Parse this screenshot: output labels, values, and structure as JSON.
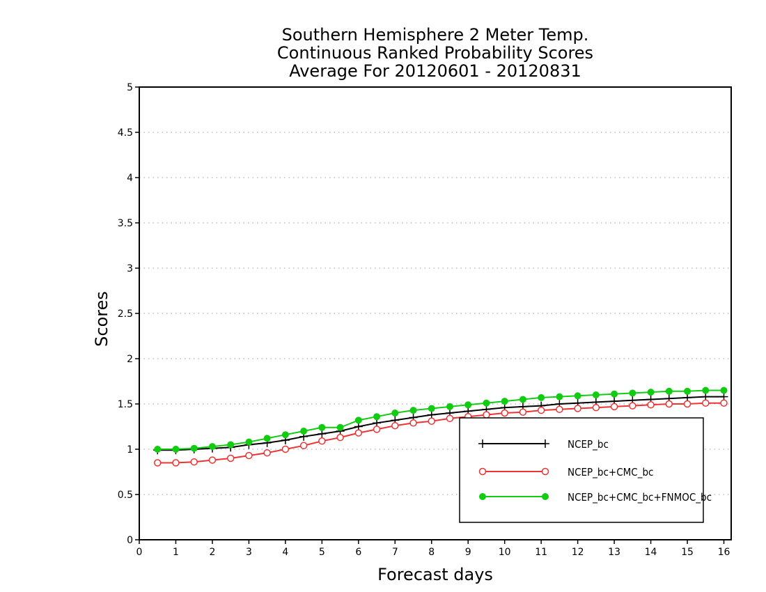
{
  "chart_data": {
    "type": "line",
    "title": [
      "Southern Hemisphere 2 Meter Temp.",
      "Continuous Ranked Probability Scores",
      "Average For 20120601 - 20120831"
    ],
    "xlabel": "Forecast days",
    "ylabel": "Scores",
    "xlim": [
      0,
      16.2
    ],
    "ylim": [
      0,
      5
    ],
    "xticks": [
      0,
      1,
      2,
      3,
      4,
      5,
      6,
      7,
      8,
      9,
      10,
      11,
      12,
      13,
      14,
      15,
      16
    ],
    "xtick_labels": [
      "0",
      "1",
      "2",
      "3",
      "4",
      "5",
      "6",
      "7",
      "8",
      "9",
      "10",
      "11",
      "12",
      "13",
      "14",
      "15",
      "16"
    ],
    "yticks": [
      0,
      0.5,
      1,
      1.5,
      2,
      2.5,
      3,
      3.5,
      4,
      4.5,
      5
    ],
    "ytick_labels": [
      "0",
      "0.5",
      "1",
      "1.5",
      "2",
      "2.5",
      "3",
      "3.5",
      "4",
      "4.5",
      "5"
    ],
    "grid": "horizontal dotted",
    "legend_position": "bottom-right",
    "x": [
      0.5,
      1,
      1.5,
      2,
      2.5,
      3,
      3.5,
      4,
      4.5,
      5,
      5.5,
      6,
      6.5,
      7,
      7.5,
      8,
      8.5,
      9,
      9.5,
      10,
      10.5,
      11,
      11.5,
      12,
      12.5,
      13,
      13.5,
      14,
      14.5,
      15,
      15.5,
      16
    ],
    "series": [
      {
        "name": "NCEP_bc",
        "color": "#000000",
        "marker": "plus",
        "values": [
          0.99,
          0.99,
          1.0,
          1.01,
          1.02,
          1.05,
          1.07,
          1.1,
          1.14,
          1.17,
          1.2,
          1.25,
          1.29,
          1.32,
          1.35,
          1.38,
          1.4,
          1.42,
          1.44,
          1.46,
          1.47,
          1.48,
          1.5,
          1.51,
          1.52,
          1.53,
          1.54,
          1.55,
          1.56,
          1.57,
          1.58,
          1.58
        ]
      },
      {
        "name": "NCEP_bc+CMC_bc",
        "color": "#ee3333",
        "marker": "open-circle",
        "values": [
          0.85,
          0.85,
          0.86,
          0.88,
          0.9,
          0.93,
          0.96,
          1.0,
          1.04,
          1.09,
          1.13,
          1.18,
          1.22,
          1.26,
          1.29,
          1.31,
          1.34,
          1.36,
          1.38,
          1.4,
          1.41,
          1.43,
          1.44,
          1.45,
          1.46,
          1.47,
          1.48,
          1.49,
          1.5,
          1.5,
          1.51,
          1.51
        ]
      },
      {
        "name": "NCEP_bc+CMC_bc+FNMOC_bc",
        "color": "#11cc11",
        "marker": "filled-circle",
        "values": [
          1.0,
          1.0,
          1.01,
          1.03,
          1.05,
          1.08,
          1.12,
          1.16,
          1.2,
          1.24,
          1.24,
          1.32,
          1.36,
          1.4,
          1.43,
          1.45,
          1.47,
          1.49,
          1.51,
          1.53,
          1.55,
          1.57,
          1.58,
          1.59,
          1.6,
          1.61,
          1.62,
          1.63,
          1.64,
          1.64,
          1.65,
          1.65
        ]
      }
    ]
  }
}
